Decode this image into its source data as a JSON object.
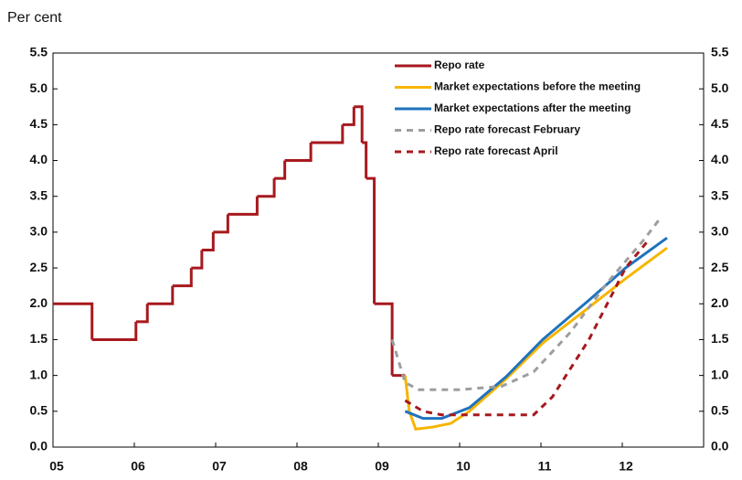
{
  "chart_data": {
    "type": "line",
    "y_axis_label": "Per cent",
    "xlim": [
      2005,
      2013
    ],
    "ylim": [
      0,
      5.5
    ],
    "xticks": [
      {
        "value": 2005,
        "label": "05"
      },
      {
        "value": 2006,
        "label": "06"
      },
      {
        "value": 2007,
        "label": "07"
      },
      {
        "value": 2008,
        "label": "08"
      },
      {
        "value": 2009,
        "label": "09"
      },
      {
        "value": 2010,
        "label": "10"
      },
      {
        "value": 2011,
        "label": "11"
      },
      {
        "value": 2012,
        "label": "12"
      }
    ],
    "yticks": [
      {
        "value": 0,
        "label": "0.0"
      },
      0.5,
      {
        "value": 1,
        "label": "1.0"
      },
      1.5,
      {
        "value": 2,
        "label": "2.0"
      },
      2.5,
      {
        "value": 3,
        "label": "3.0"
      },
      3.5,
      {
        "value": 4,
        "label": "4.0"
      },
      4.5,
      {
        "value": 5,
        "label": "5.0"
      },
      5.5
    ],
    "grid": false,
    "series": [
      {
        "name": "Repo rate",
        "color": "#a6191e",
        "style": "step",
        "x": [
          2005.0,
          2005.48,
          2006.02,
          2006.16,
          2006.47,
          2006.7,
          2006.83,
          2006.97,
          2007.15,
          2007.51,
          2007.72,
          2007.85,
          2008.17,
          2008.56,
          2008.7,
          2008.8,
          2008.85,
          2008.95,
          2009.17,
          2009.33
        ],
        "values": [
          2.0,
          1.5,
          1.75,
          2.0,
          2.25,
          2.5,
          2.75,
          3.0,
          3.25,
          3.5,
          3.75,
          4.0,
          4.25,
          4.5,
          4.75,
          4.25,
          3.75,
          2.0,
          1.0,
          1.0
        ]
      },
      {
        "name": "Market expectations before the meeting",
        "color": "#f7b500",
        "style": "solid",
        "x": [
          2009.33,
          2009.38,
          2009.46,
          2009.67,
          2009.89,
          2010.12,
          2010.57,
          2011.02,
          2011.59,
          2012.04,
          2012.55
        ],
        "values": [
          1.0,
          0.5,
          0.25,
          0.28,
          0.33,
          0.5,
          0.95,
          1.45,
          1.95,
          2.35,
          2.78
        ]
      },
      {
        "name": "Market expectations after the meeting",
        "color": "#1f72bd",
        "style": "solid",
        "x": [
          2009.33,
          2009.55,
          2009.78,
          2010.12,
          2010.57,
          2011.02,
          2011.59,
          2012.04,
          2012.55
        ],
        "values": [
          0.5,
          0.4,
          0.4,
          0.55,
          0.98,
          1.5,
          2.05,
          2.5,
          2.92
        ]
      },
      {
        "name": "Repo rate forecast February",
        "color": "#9e9e9e",
        "style": "dashed",
        "x": [
          2009.17,
          2009.33,
          2009.5,
          2010.0,
          2010.52,
          2010.91,
          2011.36,
          2011.82,
          2012.27,
          2012.47
        ],
        "values": [
          1.5,
          0.9,
          0.8,
          0.8,
          0.85,
          1.05,
          1.6,
          2.3,
          2.9,
          3.2
        ]
      },
      {
        "name": "Repo rate forecast April",
        "color": "#a6191e",
        "style": "dashed",
        "x": [
          2009.33,
          2009.55,
          2009.78,
          2010.91,
          2011.14,
          2011.59,
          2012.04,
          2012.33
        ],
        "values": [
          0.65,
          0.5,
          0.45,
          0.45,
          0.7,
          1.5,
          2.5,
          2.9
        ]
      }
    ]
  }
}
